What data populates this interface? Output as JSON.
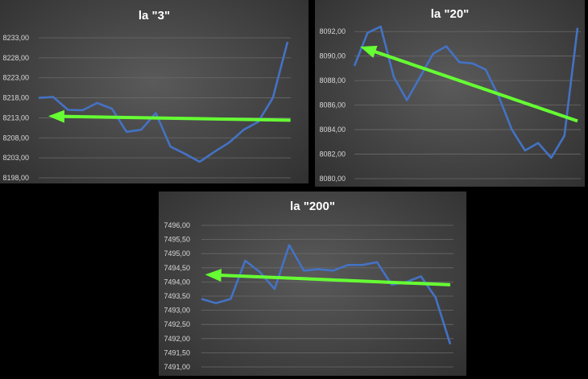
{
  "chart_data": [
    {
      "type": "line",
      "title": "la \"3\"",
      "y_ticks": [
        "8198,00",
        "8203,00",
        "8208,00",
        "8213,00",
        "8218,00",
        "8223,00",
        "8228,00",
        "8233,00"
      ],
      "ylim": [
        8198,
        8233
      ],
      "series": [
        {
          "color": "#4472c4",
          "values": [
            8218,
            8218.2,
            8215,
            8214.9,
            8216.7,
            8215.3,
            8209.5,
            8210,
            8214.2,
            8205.8,
            8204,
            8202,
            8204.5,
            8206.8,
            8210,
            8212,
            8218,
            8232
          ]
        }
      ],
      "trend_arrow": {
        "color": "#66ff33",
        "from": [
          17.2,
          8212.4
        ],
        "to": [
          1.1,
          8213.4
        ]
      },
      "grid": true
    },
    {
      "type": "line",
      "title": "la \"20\"",
      "y_ticks": [
        "8080,00",
        "8082,00",
        "8084,00",
        "8086,00",
        "8088,00",
        "8090,00",
        "8092,00"
      ],
      "ylim": [
        8080,
        8093
      ],
      "series": [
        {
          "color": "#4472c4",
          "values": [
            8089.2,
            8091.9,
            8092.4,
            8088.3,
            8086.4,
            8088.3,
            8090.2,
            8090.8,
            8089.5,
            8089.4,
            8088.9,
            8086.7,
            8084,
            8082.3,
            8082.9,
            8081.7,
            8083.5,
            8092.3
          ]
        }
      ],
      "trend_arrow": {
        "color": "#66ff33",
        "from": [
          17,
          8084.7
        ],
        "to": [
          0.9,
          8090.6
        ]
      },
      "grid": true
    },
    {
      "type": "line",
      "title": "la \"200\"",
      "y_ticks": [
        "7491,00",
        "7491,50",
        "7492,00",
        "7492,50",
        "7493,00",
        "7493,50",
        "7494,00",
        "7494,50",
        "7495,00",
        "7495,50",
        "7496,00"
      ],
      "ylim": [
        7491,
        7496
      ],
      "series": [
        {
          "color": "#4472c4",
          "values": [
            7493.4,
            7493.25,
            7493.4,
            7494.75,
            7494.35,
            7493.75,
            7495.3,
            7494.4,
            7494.45,
            7494.4,
            7494.6,
            7494.6,
            7494.7,
            7493.9,
            7494,
            7494.2,
            7493.45,
            7491.8
          ]
        }
      ],
      "trend_arrow": {
        "color": "#66ff33",
        "from": [
          17,
          7493.9
        ],
        "to": [
          0.7,
          7494.25
        ]
      },
      "grid": true
    }
  ]
}
